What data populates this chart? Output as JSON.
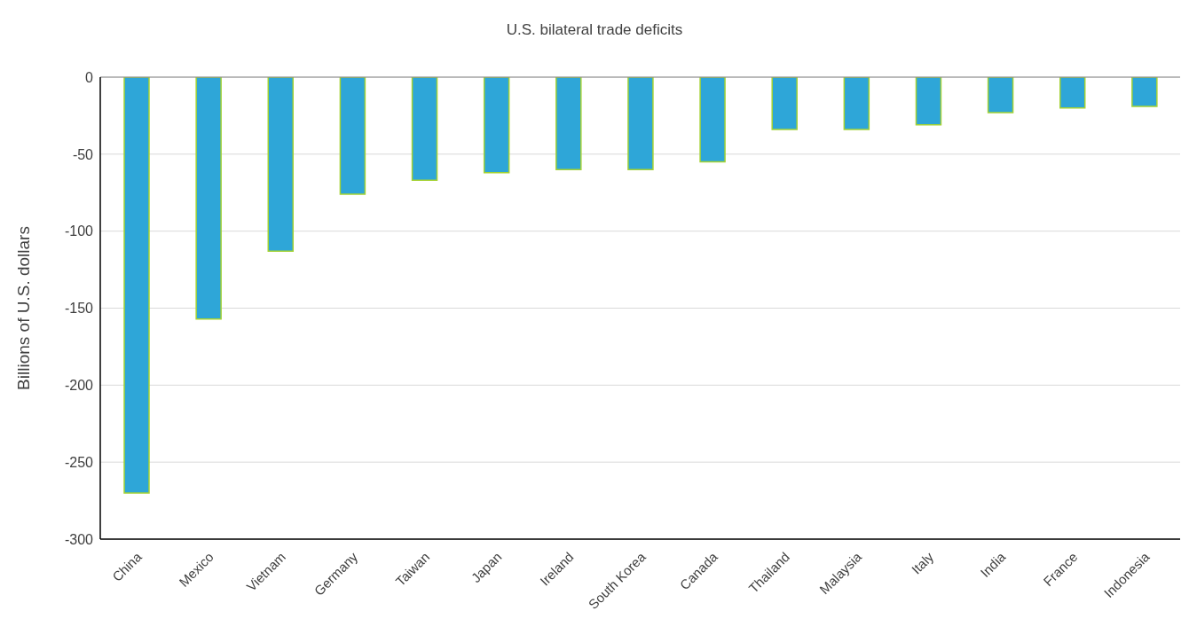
{
  "chart_data": {
    "type": "bar",
    "title": "U.S. bilateral trade deficits",
    "ylabel": "Billions of U.S. dollars",
    "categories": [
      "China",
      "Mexico",
      "Vietnam",
      "Germany",
      "Taiwan",
      "Japan",
      "Ireland",
      "South Korea",
      "Canada",
      "Thailand",
      "Malaysia",
      "Italy",
      "India",
      "France",
      "Indonesia"
    ],
    "values": [
      -270,
      -157,
      -113,
      -76,
      -67,
      -62,
      -60,
      -60,
      -55,
      -34,
      -34,
      -31,
      -23,
      -20,
      -19
    ],
    "color": "#2ea6d8",
    "ylim": [
      -300,
      0
    ],
    "yticks": [
      -300,
      -250,
      -200,
      -150,
      -100,
      -50,
      0
    ],
    "grid": "y",
    "legend": false
  }
}
